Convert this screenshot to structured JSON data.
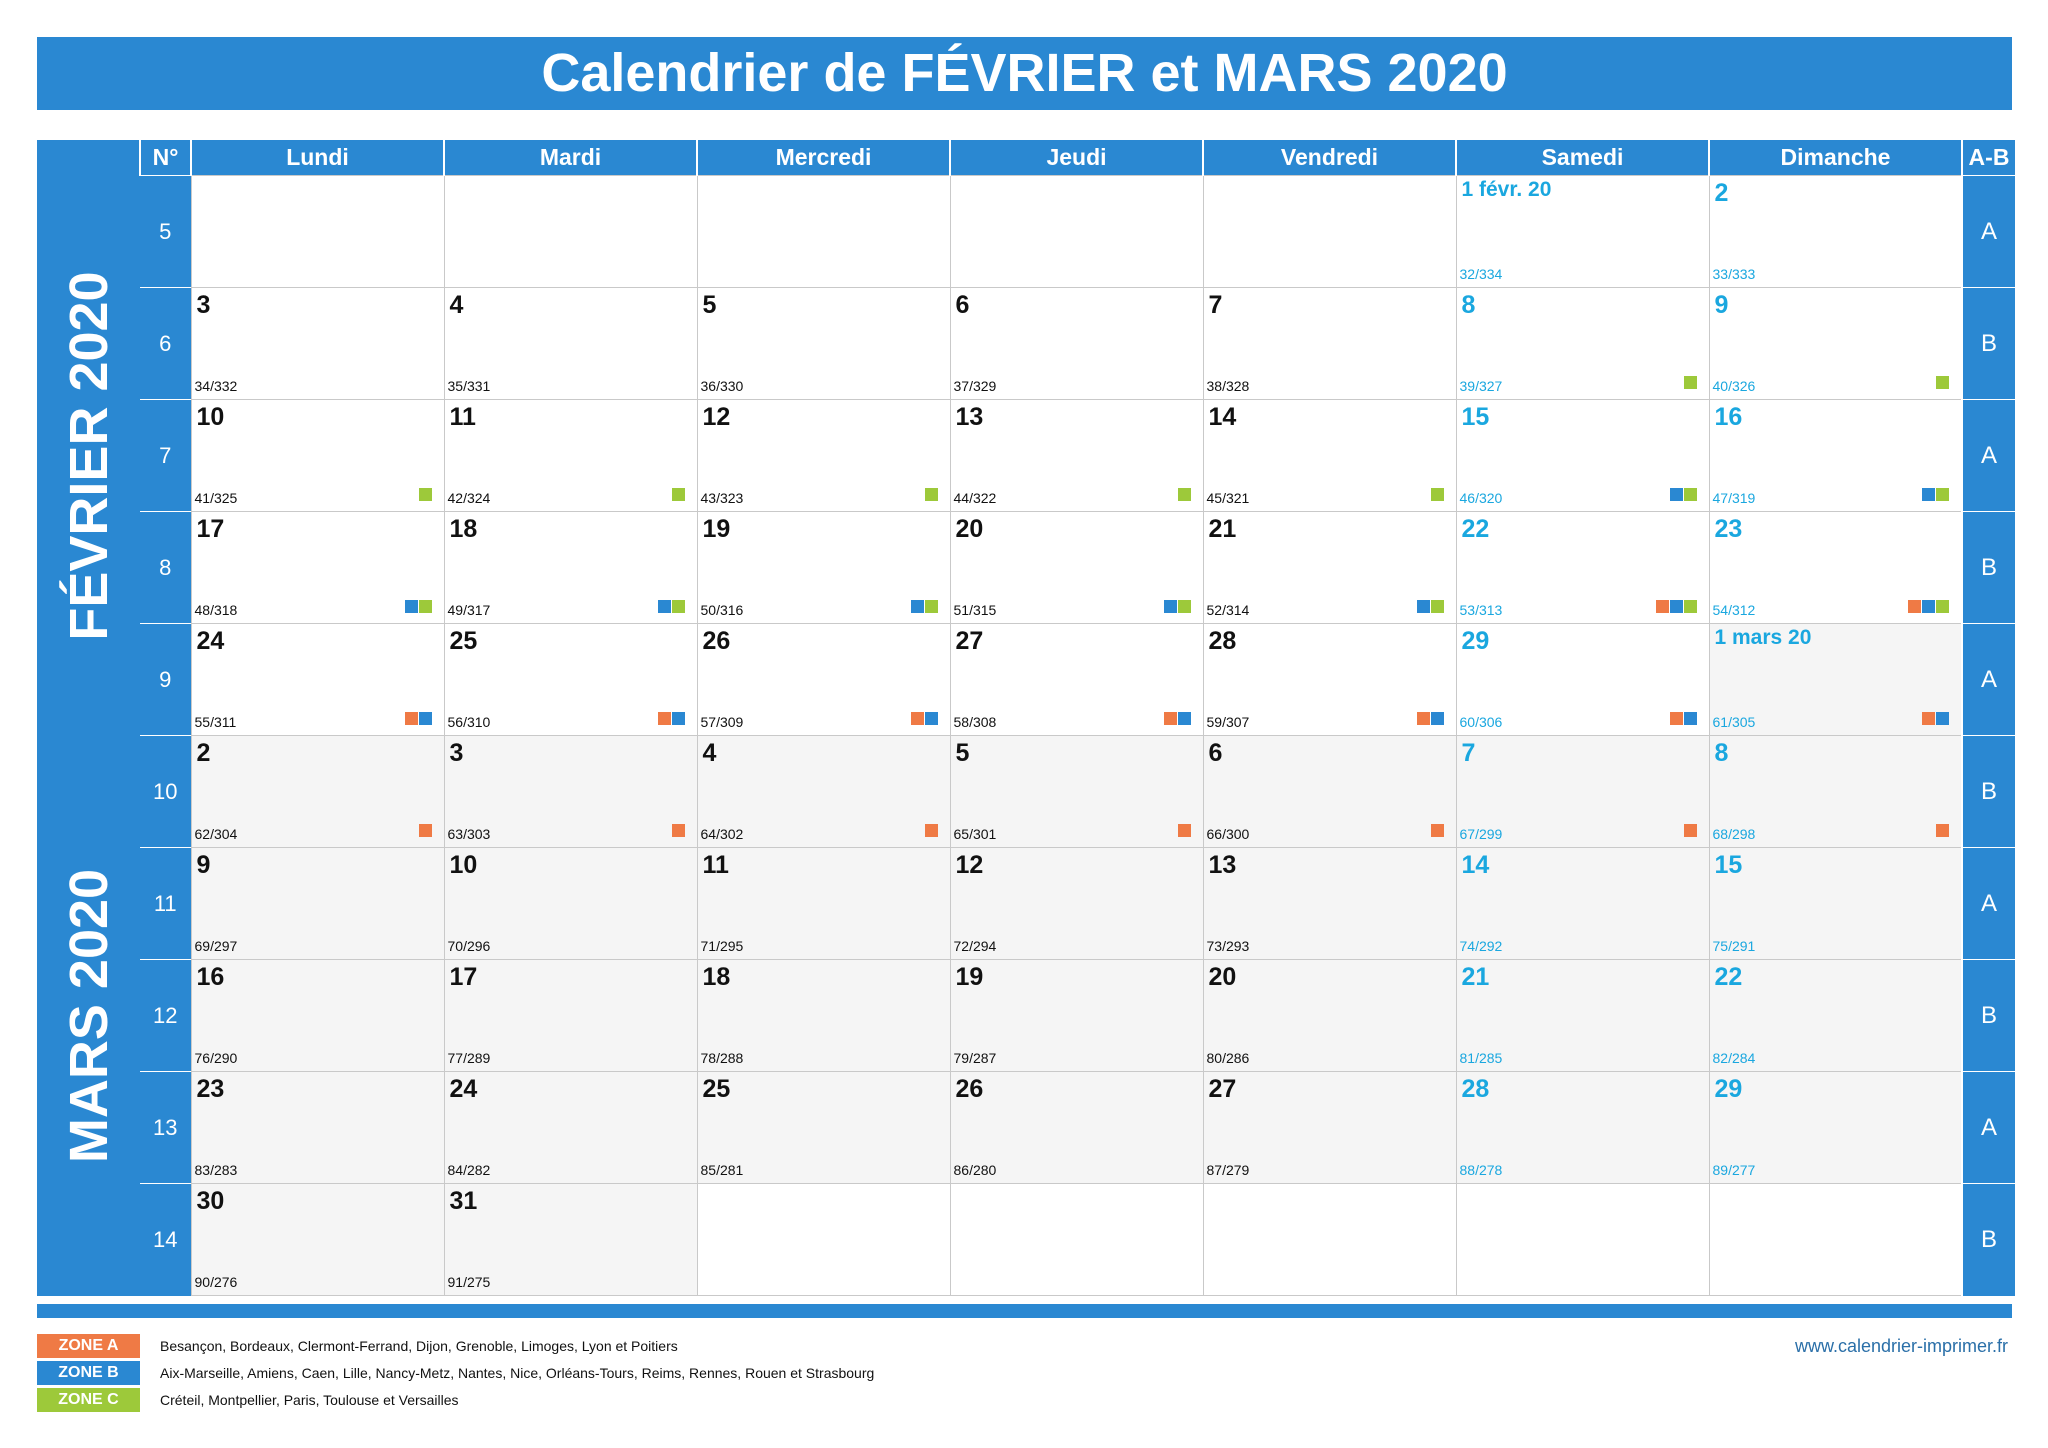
{
  "title": "Calendrier de FÉVRIER et MARS 2020",
  "header": {
    "weeknum_label": "N°",
    "days": [
      "Lundi",
      "Mardi",
      "Mercredi",
      "Jeudi",
      "Vendredi",
      "Samedi",
      "Dimanche"
    ],
    "ab_label": "A-B"
  },
  "months": {
    "feb": "FÉVRIER 2020",
    "mar": "MARS 2020"
  },
  "colors": {
    "primary": "#2a88d2",
    "weekend_text": "#1aa7df",
    "zone_a": "#ef7a45",
    "zone_b": "#2a88d2",
    "zone_c": "#9dc93a"
  },
  "weeks": [
    {
      "num": "5",
      "ab": "A",
      "days": [
        null,
        null,
        null,
        null,
        null,
        {
          "label": "1 févr. 20",
          "count": "32/334",
          "month": "feb",
          "zones": []
        },
        {
          "label": "2",
          "count": "33/333",
          "month": "feb",
          "zones": []
        }
      ]
    },
    {
      "num": "6",
      "ab": "B",
      "days": [
        {
          "label": "3",
          "count": "34/332",
          "month": "feb",
          "zones": []
        },
        {
          "label": "4",
          "count": "35/331",
          "month": "feb",
          "zones": []
        },
        {
          "label": "5",
          "count": "36/330",
          "month": "feb",
          "zones": []
        },
        {
          "label": "6",
          "count": "37/329",
          "month": "feb",
          "zones": []
        },
        {
          "label": "7",
          "count": "38/328",
          "month": "feb",
          "zones": []
        },
        {
          "label": "8",
          "count": "39/327",
          "month": "feb",
          "zones": [
            "C"
          ]
        },
        {
          "label": "9",
          "count": "40/326",
          "month": "feb",
          "zones": [
            "C"
          ]
        }
      ]
    },
    {
      "num": "7",
      "ab": "A",
      "days": [
        {
          "label": "10",
          "count": "41/325",
          "month": "feb",
          "zones": [
            "C"
          ]
        },
        {
          "label": "11",
          "count": "42/324",
          "month": "feb",
          "zones": [
            "C"
          ]
        },
        {
          "label": "12",
          "count": "43/323",
          "month": "feb",
          "zones": [
            "C"
          ]
        },
        {
          "label": "13",
          "count": "44/322",
          "month": "feb",
          "zones": [
            "C"
          ]
        },
        {
          "label": "14",
          "count": "45/321",
          "month": "feb",
          "zones": [
            "C"
          ]
        },
        {
          "label": "15",
          "count": "46/320",
          "month": "feb",
          "zones": [
            "B",
            "C"
          ]
        },
        {
          "label": "16",
          "count": "47/319",
          "month": "feb",
          "zones": [
            "B",
            "C"
          ]
        }
      ]
    },
    {
      "num": "8",
      "ab": "B",
      "days": [
        {
          "label": "17",
          "count": "48/318",
          "month": "feb",
          "zones": [
            "B",
            "C"
          ]
        },
        {
          "label": "18",
          "count": "49/317",
          "month": "feb",
          "zones": [
            "B",
            "C"
          ]
        },
        {
          "label": "19",
          "count": "50/316",
          "month": "feb",
          "zones": [
            "B",
            "C"
          ]
        },
        {
          "label": "20",
          "count": "51/315",
          "month": "feb",
          "zones": [
            "B",
            "C"
          ]
        },
        {
          "label": "21",
          "count": "52/314",
          "month": "feb",
          "zones": [
            "B",
            "C"
          ]
        },
        {
          "label": "22",
          "count": "53/313",
          "month": "feb",
          "zones": [
            "A",
            "B",
            "C"
          ]
        },
        {
          "label": "23",
          "count": "54/312",
          "month": "feb",
          "zones": [
            "A",
            "B",
            "C"
          ]
        }
      ]
    },
    {
      "num": "9",
      "ab": "A",
      "days": [
        {
          "label": "24",
          "count": "55/311",
          "month": "feb",
          "zones": [
            "A",
            "B"
          ]
        },
        {
          "label": "25",
          "count": "56/310",
          "month": "feb",
          "zones": [
            "A",
            "B"
          ]
        },
        {
          "label": "26",
          "count": "57/309",
          "month": "feb",
          "zones": [
            "A",
            "B"
          ]
        },
        {
          "label": "27",
          "count": "58/308",
          "month": "feb",
          "zones": [
            "A",
            "B"
          ]
        },
        {
          "label": "28",
          "count": "59/307",
          "month": "feb",
          "zones": [
            "A",
            "B"
          ]
        },
        {
          "label": "29",
          "count": "60/306",
          "month": "feb",
          "zones": [
            "A",
            "B"
          ]
        },
        {
          "label": "1 mars 20",
          "count": "61/305",
          "month": "mar",
          "zones": [
            "A",
            "B"
          ]
        }
      ]
    },
    {
      "num": "10",
      "ab": "B",
      "days": [
        {
          "label": "2",
          "count": "62/304",
          "month": "mar",
          "zones": [
            "A"
          ]
        },
        {
          "label": "3",
          "count": "63/303",
          "month": "mar",
          "zones": [
            "A"
          ]
        },
        {
          "label": "4",
          "count": "64/302",
          "month": "mar",
          "zones": [
            "A"
          ]
        },
        {
          "label": "5",
          "count": "65/301",
          "month": "mar",
          "zones": [
            "A"
          ]
        },
        {
          "label": "6",
          "count": "66/300",
          "month": "mar",
          "zones": [
            "A"
          ]
        },
        {
          "label": "7",
          "count": "67/299",
          "month": "mar",
          "zones": [
            "A"
          ]
        },
        {
          "label": "8",
          "count": "68/298",
          "month": "mar",
          "zones": [
            "A"
          ]
        }
      ]
    },
    {
      "num": "11",
      "ab": "A",
      "days": [
        {
          "label": "9",
          "count": "69/297",
          "month": "mar",
          "zones": []
        },
        {
          "label": "10",
          "count": "70/296",
          "month": "mar",
          "zones": []
        },
        {
          "label": "11",
          "count": "71/295",
          "month": "mar",
          "zones": []
        },
        {
          "label": "12",
          "count": "72/294",
          "month": "mar",
          "zones": []
        },
        {
          "label": "13",
          "count": "73/293",
          "month": "mar",
          "zones": []
        },
        {
          "label": "14",
          "count": "74/292",
          "month": "mar",
          "zones": []
        },
        {
          "label": "15",
          "count": "75/291",
          "month": "mar",
          "zones": []
        }
      ]
    },
    {
      "num": "12",
      "ab": "B",
      "days": [
        {
          "label": "16",
          "count": "76/290",
          "month": "mar",
          "zones": []
        },
        {
          "label": "17",
          "count": "77/289",
          "month": "mar",
          "zones": []
        },
        {
          "label": "18",
          "count": "78/288",
          "month": "mar",
          "zones": []
        },
        {
          "label": "19",
          "count": "79/287",
          "month": "mar",
          "zones": []
        },
        {
          "label": "20",
          "count": "80/286",
          "month": "mar",
          "zones": []
        },
        {
          "label": "21",
          "count": "81/285",
          "month": "mar",
          "zones": []
        },
        {
          "label": "22",
          "count": "82/284",
          "month": "mar",
          "zones": []
        }
      ]
    },
    {
      "num": "13",
      "ab": "A",
      "days": [
        {
          "label": "23",
          "count": "83/283",
          "month": "mar",
          "zones": []
        },
        {
          "label": "24",
          "count": "84/282",
          "month": "mar",
          "zones": []
        },
        {
          "label": "25",
          "count": "85/281",
          "month": "mar",
          "zones": []
        },
        {
          "label": "26",
          "count": "86/280",
          "month": "mar",
          "zones": []
        },
        {
          "label": "27",
          "count": "87/279",
          "month": "mar",
          "zones": []
        },
        {
          "label": "28",
          "count": "88/278",
          "month": "mar",
          "zones": []
        },
        {
          "label": "29",
          "count": "89/277",
          "month": "mar",
          "zones": []
        }
      ]
    },
    {
      "num": "14",
      "ab": "B",
      "days": [
        {
          "label": "30",
          "count": "90/276",
          "month": "mar",
          "zones": []
        },
        {
          "label": "31",
          "count": "91/275",
          "month": "mar",
          "zones": []
        },
        null,
        null,
        null,
        null,
        null
      ]
    }
  ],
  "legend": [
    {
      "zone": "A",
      "label": "ZONE A",
      "text": "Besançon, Bordeaux, Clermont-Ferrand, Dijon, Grenoble, Limoges, Lyon et Poitiers"
    },
    {
      "zone": "B",
      "label": "ZONE B",
      "text": "Aix-Marseille, Amiens, Caen, Lille, Nancy-Metz, Nantes, Nice, Orléans-Tours, Reims, Rennes, Rouen et Strasbourg"
    },
    {
      "zone": "C",
      "label": "ZONE C",
      "text": "Créteil, Montpellier, Paris, Toulouse et Versailles"
    }
  ],
  "website": "www.calendrier-imprimer.fr"
}
